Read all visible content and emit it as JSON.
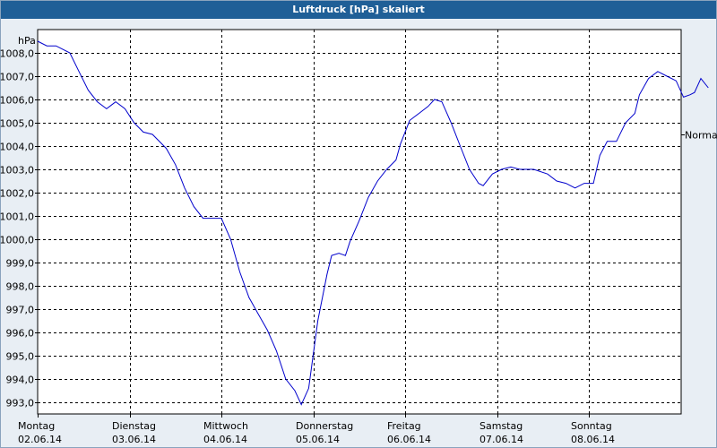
{
  "window": {
    "title": "Luftdruck [hPa] skaliert"
  },
  "colors": {
    "title_bar": "#1f5f97",
    "plot_background": "#ffffff",
    "page_background": "#e8eef4",
    "series_line": "#0000cc",
    "grid": "#000000"
  },
  "chart_data": {
    "type": "line",
    "title": "Luftdruck [hPa] skaliert",
    "ylabel": "hPa",
    "xlabel": "",
    "grid": true,
    "ylim": [
      992.5,
      1009
    ],
    "yticks": [
      "993,0",
      "994,0",
      "995,0",
      "996,0",
      "997,0",
      "998,0",
      "999,0",
      "1000,0",
      "1001,0",
      "1002,0",
      "1003,0",
      "1004,0",
      "1005,0",
      "1006,0",
      "1007,0",
      "1008,0"
    ],
    "x_categories": [
      {
        "day": "Montag",
        "date": "02.06.14"
      },
      {
        "day": "Dienstag",
        "date": "03.06.14"
      },
      {
        "day": "Mittwoch",
        "date": "04.06.14"
      },
      {
        "day": "Donnerstag",
        "date": "05.06.14"
      },
      {
        "day": "Freitag",
        "date": "06.06.14"
      },
      {
        "day": "Samstag",
        "date": "07.06.14"
      },
      {
        "day": "Sonntag",
        "date": "08.06.14"
      }
    ],
    "reference_line": {
      "label": "Normal",
      "value": 1004.5
    },
    "series": [
      {
        "x_unit": "days since Montag 02.06.14",
        "points": [
          [
            0.0,
            1008.5
          ],
          [
            0.1,
            1008.3
          ],
          [
            0.2,
            1008.3
          ],
          [
            0.35,
            1008.0
          ],
          [
            0.45,
            1007.2
          ],
          [
            0.55,
            1006.4
          ],
          [
            0.65,
            1005.9
          ],
          [
            0.75,
            1005.6
          ],
          [
            0.85,
            1005.9
          ],
          [
            0.95,
            1005.6
          ],
          [
            1.05,
            1005.0
          ],
          [
            1.15,
            1004.6
          ],
          [
            1.25,
            1004.5
          ],
          [
            1.4,
            1003.9
          ],
          [
            1.5,
            1003.2
          ],
          [
            1.6,
            1002.2
          ],
          [
            1.7,
            1001.4
          ],
          [
            1.8,
            1000.9
          ],
          [
            1.9,
            1000.9
          ],
          [
            2.0,
            1000.9
          ],
          [
            2.1,
            1000.0
          ],
          [
            2.2,
            998.6
          ],
          [
            2.3,
            997.5
          ],
          [
            2.4,
            996.8
          ],
          [
            2.5,
            996.1
          ],
          [
            2.6,
            995.2
          ],
          [
            2.7,
            994.0
          ],
          [
            2.8,
            993.5
          ],
          [
            2.87,
            992.9
          ],
          [
            2.95,
            993.6
          ],
          [
            3.05,
            996.5
          ],
          [
            3.15,
            998.5
          ],
          [
            3.2,
            999.3
          ],
          [
            3.28,
            999.4
          ],
          [
            3.35,
            999.3
          ],
          [
            3.4,
            999.9
          ],
          [
            3.5,
            1000.8
          ],
          [
            3.6,
            1001.8
          ],
          [
            3.7,
            1002.5
          ],
          [
            3.8,
            1003.0
          ],
          [
            3.9,
            1003.4
          ],
          [
            3.95,
            1004.1
          ],
          [
            4.05,
            1005.1
          ],
          [
            4.15,
            1005.4
          ],
          [
            4.25,
            1005.7
          ],
          [
            4.32,
            1006.0
          ],
          [
            4.4,
            1005.9
          ],
          [
            4.5,
            1005.0
          ],
          [
            4.6,
            1004.0
          ],
          [
            4.7,
            1003.0
          ],
          [
            4.8,
            1002.4
          ],
          [
            4.85,
            1002.3
          ],
          [
            4.95,
            1002.8
          ],
          [
            5.05,
            1003.0
          ],
          [
            5.15,
            1003.1
          ],
          [
            5.25,
            1003.0
          ],
          [
            5.4,
            1003.0
          ],
          [
            5.55,
            1002.8
          ],
          [
            5.65,
            1002.5
          ],
          [
            5.75,
            1002.4
          ],
          [
            5.85,
            1002.2
          ],
          [
            5.95,
            1002.4
          ],
          [
            6.05,
            1002.4
          ],
          [
            6.12,
            1003.6
          ],
          [
            6.2,
            1004.2
          ],
          [
            6.3,
            1004.2
          ],
          [
            6.4,
            1005.0
          ],
          [
            6.5,
            1005.4
          ],
          [
            6.55,
            1006.2
          ],
          [
            6.65,
            1006.9
          ],
          [
            6.75,
            1007.2
          ],
          [
            6.85,
            1007.0
          ],
          [
            6.95,
            1006.8
          ],
          [
            7.03,
            1006.1
          ],
          [
            7.1,
            1006.2
          ],
          [
            7.15,
            1006.3
          ],
          [
            7.22,
            1006.9
          ],
          [
            7.3,
            1006.5
          ]
        ]
      }
    ]
  }
}
